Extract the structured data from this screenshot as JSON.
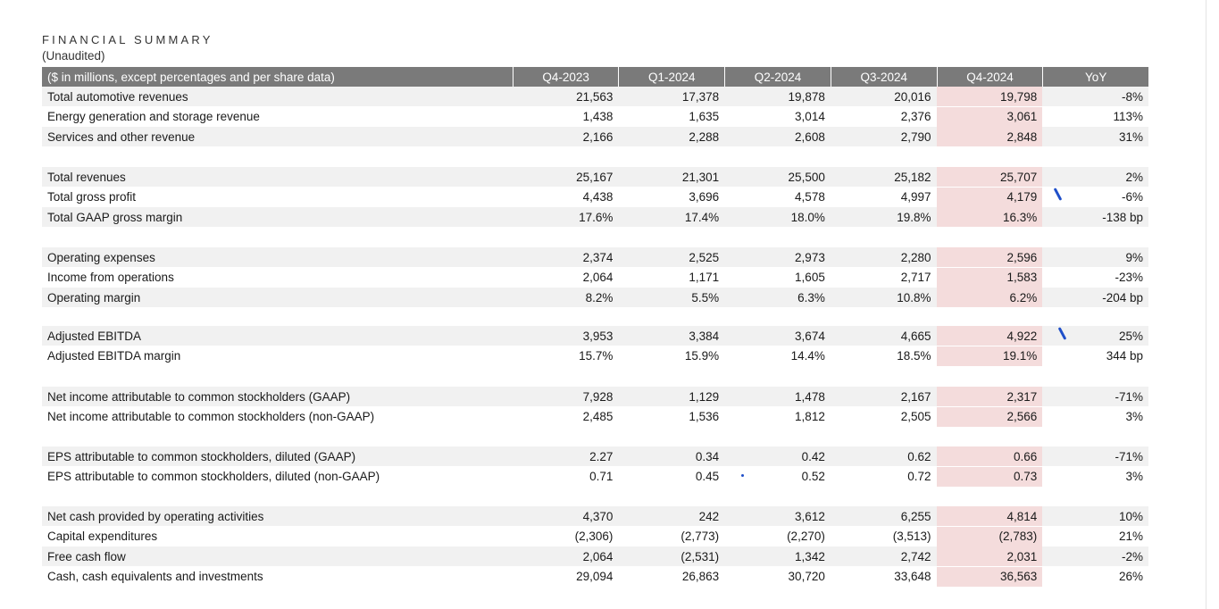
{
  "document": {
    "title": "FINANCIAL SUMMARY",
    "subtitle": "(Unaudited)"
  },
  "table": {
    "header": {
      "label": "($ in millions, except percentages and per share data)",
      "columns": [
        "Q4-2023",
        "Q1-2024",
        "Q2-2024",
        "Q3-2024",
        "Q4-2024",
        "YoY"
      ]
    },
    "groups": [
      {
        "rows": [
          {
            "label": "Total automotive revenues",
            "values": [
              "21,563",
              "17,378",
              "19,878",
              "20,016",
              "19,798",
              "-8%"
            ]
          },
          {
            "label": "Energy generation and storage revenue",
            "values": [
              "1,438",
              "1,635",
              "3,014",
              "2,376",
              "3,061",
              "113%"
            ]
          },
          {
            "label": "Services and other revenue",
            "values": [
              "2,166",
              "2,288",
              "2,608",
              "2,790",
              "2,848",
              "31%"
            ]
          }
        ]
      },
      {
        "rows": [
          {
            "label": "Total revenues",
            "values": [
              "25,167",
              "21,301",
              "25,500",
              "25,182",
              "25,707",
              "2%"
            ]
          },
          {
            "label": "Total gross profit",
            "values": [
              "4,438",
              "3,696",
              "4,578",
              "4,997",
              "4,179",
              "-6%"
            ]
          },
          {
            "label": "Total GAAP gross margin",
            "values": [
              "17.6%",
              "17.4%",
              "18.0%",
              "19.8%",
              "16.3%",
              "-138 bp"
            ]
          }
        ]
      },
      {
        "rows": [
          {
            "label": "Operating expenses",
            "values": [
              "2,374",
              "2,525",
              "2,973",
              "2,280",
              "2,596",
              "9%"
            ]
          },
          {
            "label": "Income from operations",
            "values": [
              "2,064",
              "1,171",
              "1,605",
              "2,717",
              "1,583",
              "-23%"
            ]
          },
          {
            "label": "Operating margin",
            "values": [
              "8.2%",
              "5.5%",
              "6.3%",
              "10.8%",
              "6.2%",
              "-204 bp"
            ]
          }
        ]
      },
      {
        "rows": [
          {
            "label": "Adjusted EBITDA",
            "values": [
              "3,953",
              "3,384",
              "3,674",
              "4,665",
              "4,922",
              "25%"
            ]
          },
          {
            "label": "Adjusted EBITDA margin",
            "values": [
              "15.7%",
              "15.9%",
              "14.4%",
              "18.5%",
              "19.1%",
              "344 bp"
            ]
          }
        ]
      },
      {
        "rows": [
          {
            "label": "Net income attributable to common stockholders (GAAP)",
            "values": [
              "7,928",
              "1,129",
              "1,478",
              "2,167",
              "2,317",
              "-71%"
            ]
          },
          {
            "label": "Net income attributable to common stockholders (non-GAAP)",
            "values": [
              "2,485",
              "1,536",
              "1,812",
              "2,505",
              "2,566",
              "3%"
            ]
          }
        ]
      },
      {
        "rows": [
          {
            "label": "EPS attributable to common stockholders, diluted (GAAP)",
            "values": [
              "2.27",
              "0.34",
              "0.42",
              "0.62",
              "0.66",
              "-71%"
            ]
          },
          {
            "label": "EPS attributable to common stockholders, diluted (non-GAAP)",
            "values": [
              "0.71",
              "0.45",
              "0.52",
              "0.72",
              "0.73",
              "3%"
            ]
          }
        ]
      },
      {
        "rows": [
          {
            "label": "Net cash provided by operating activities",
            "values": [
              "4,370",
              "242",
              "3,612",
              "6,255",
              "4,814",
              "10%"
            ]
          },
          {
            "label": "Capital expenditures",
            "values": [
              "(2,306)",
              "(2,773)",
              "(2,270)",
              "(3,513)",
              "(2,783)",
              "21%"
            ]
          },
          {
            "label": "Free cash flow",
            "values": [
              "2,064",
              "(2,531)",
              "1,342",
              "2,742",
              "2,031",
              "-2%"
            ]
          },
          {
            "label": "Cash, cash equivalents and investments",
            "values": [
              "29,094",
              "26,863",
              "30,720",
              "33,648",
              "36,563",
              "26%"
            ]
          }
        ]
      }
    ]
  },
  "colors": {
    "header_bg": "#7a7a7a",
    "row_shade": "#f1f1f1",
    "highlight_column": "#f4dcdc",
    "annotation_ink": "#1f4fc9"
  }
}
